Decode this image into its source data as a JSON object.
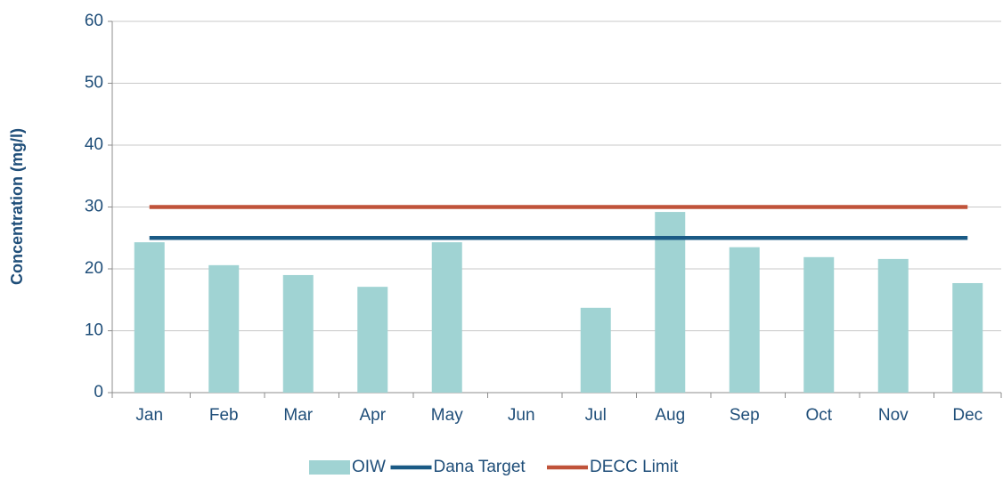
{
  "chart_data": {
    "type": "bar",
    "y_label": "Concentration (mg/l)",
    "categories": [
      "Jan",
      "Feb",
      "Mar",
      "Apr",
      "May",
      "Jun",
      "Jul",
      "Aug",
      "Sep",
      "Oct",
      "Nov",
      "Dec"
    ],
    "series": [
      {
        "name": "OIW",
        "type": "bar",
        "color": "#a0d3d3",
        "values": [
          24.3,
          20.6,
          19.0,
          17.1,
          24.3,
          null,
          13.7,
          29.2,
          23.5,
          21.9,
          21.6,
          17.7
        ]
      },
      {
        "name": "Dana Target",
        "type": "line",
        "color": "#1a5a85",
        "values": [
          25,
          25,
          25,
          25,
          25,
          25,
          25,
          25,
          25,
          25,
          25,
          25
        ]
      },
      {
        "name": "DECC Limit",
        "type": "line",
        "color": "#c0533a",
        "values": [
          30,
          30,
          30,
          30,
          30,
          30,
          30,
          30,
          30,
          30,
          30,
          30
        ]
      }
    ],
    "ylim": [
      0,
      60
    ],
    "yticks": [
      0,
      10,
      20,
      30,
      40,
      50,
      60
    ],
    "grid": true,
    "legend": "bottom"
  }
}
